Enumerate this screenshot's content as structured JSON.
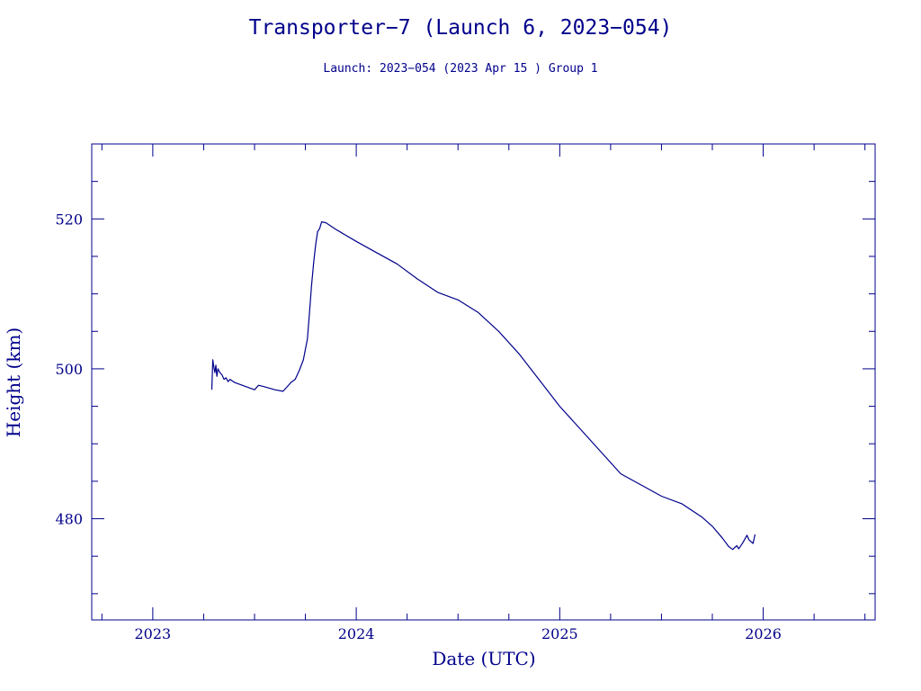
{
  "chart_data": {
    "type": "line",
    "title": "Transporter−7 (Launch 6, 2023−054)",
    "subtitle": "Launch: 2023−054  (2023 Apr 15 )  Group 1",
    "xlabel": "Date (UTC)",
    "ylabel": "Height (km)",
    "xlim": [
      2022.7,
      2026.55
    ],
    "ylim": [
      466.5,
      530
    ],
    "xticks": [
      2023,
      2024,
      2025,
      2026
    ],
    "xtick_labels": [
      "2023",
      "2024",
      "2025",
      "2026"
    ],
    "yticks": [
      480,
      500,
      520
    ],
    "ytick_labels": [
      "480",
      "500",
      "520"
    ],
    "grid": false,
    "colors": {
      "axis": "#00008b",
      "series": "#00008b",
      "background": "#ffffff"
    },
    "series": [
      {
        "x": [
          2023.29,
          2023.295,
          2023.3,
          2023.305,
          2023.31,
          2023.315,
          2023.32,
          2023.33,
          2023.34,
          2023.35,
          2023.36,
          2023.37,
          2023.38,
          2023.4,
          2023.45,
          2023.5,
          2023.52,
          2023.55,
          2023.6,
          2023.64,
          2023.66,
          2023.68,
          2023.7,
          2023.72,
          2023.74,
          2023.76,
          2023.77,
          2023.78,
          2023.79,
          2023.8,
          2023.81,
          2023.82,
          2023.83,
          2023.85,
          2023.9,
          2024.0,
          2024.1,
          2024.2,
          2024.3,
          2024.4,
          2024.5,
          2024.6,
          2024.7,
          2024.8,
          2024.9,
          2025.0,
          2025.1,
          2025.2,
          2025.3,
          2025.4,
          2025.5,
          2025.6,
          2025.7,
          2025.75,
          2025.8,
          2025.83,
          2025.85,
          2025.87,
          2025.88,
          2025.9,
          2025.92,
          2025.93,
          2025.95,
          2025.96
        ],
        "y": [
          497.2,
          501.2,
          500.3,
          499.5,
          500.5,
          499.0,
          500.0,
          499.5,
          499.2,
          498.6,
          498.8,
          498.3,
          498.6,
          498.2,
          497.7,
          497.2,
          497.8,
          497.6,
          497.2,
          497.0,
          497.6,
          498.2,
          498.6,
          499.8,
          501.2,
          504.0,
          507.5,
          511.0,
          514.0,
          516.5,
          518.3,
          518.7,
          519.6,
          519.5,
          518.6,
          517.0,
          515.5,
          514.0,
          512.0,
          510.2,
          509.2,
          507.5,
          505.0,
          502.0,
          498.5,
          495.0,
          492.0,
          489.0,
          486.0,
          484.5,
          483.0,
          482.0,
          480.2,
          479.0,
          477.4,
          476.3,
          475.9,
          476.4,
          476.0,
          476.8,
          477.8,
          477.2,
          476.7,
          477.9
        ]
      }
    ]
  }
}
